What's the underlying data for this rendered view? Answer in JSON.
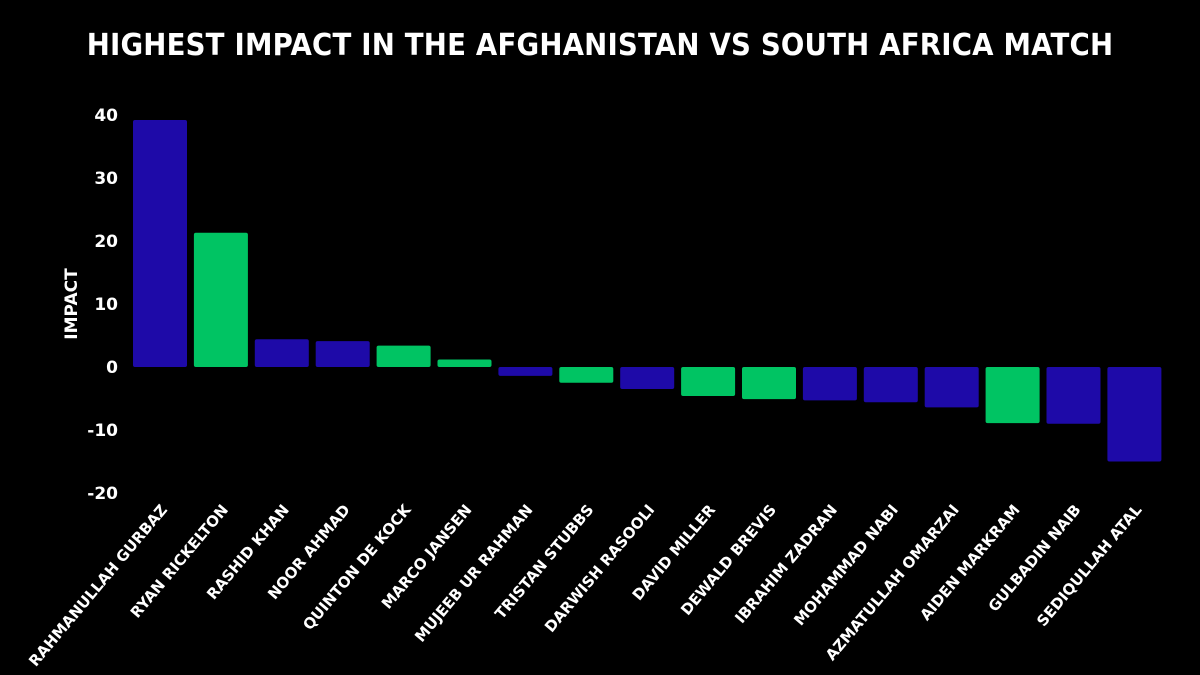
{
  "chart_data": {
    "type": "bar",
    "title": "HIGHEST IMPACT IN THE AFGHANISTAN VS SOUTH AFRICA MATCH",
    "xlabel": "",
    "ylabel": "IMPACT",
    "ylim": [
      -20,
      40
    ],
    "yticks": [
      "40",
      "30",
      "20",
      "10",
      "0",
      "-10",
      "-20"
    ],
    "ytick_values": [
      40,
      30,
      20,
      10,
      0,
      -10,
      -20
    ],
    "colors": {
      "afghanistan": "#1e0aa8",
      "south_africa": "#00c463"
    },
    "categories": [
      "RAHMANULLAH GURBAZ",
      "RYAN RICKELTON",
      "RASHID KHAN",
      "NOOR AHMAD",
      "QUINTON DE KOCK",
      "MARCO JANSEN",
      "MUJEEB UR RAHMAN",
      "TRISTAN STUBBS",
      "DARWISH RASOOLI",
      "DAVID MILLER",
      "DEWALD BREVIS",
      "IBRAHIM ZADRAN",
      "MOHAMMAD NABI",
      "AZMATULLAH OMARZAI",
      "AIDEN MARKRAM",
      "GULBADIN NAIB",
      "SEDIQULLAH ATAL"
    ],
    "values": [
      39.2,
      21.3,
      4.4,
      4.1,
      3.4,
      1.2,
      -1.4,
      -2.5,
      -3.5,
      -4.6,
      -5.1,
      -5.3,
      -5.6,
      -6.4,
      -8.9,
      -9.0,
      -15.0
    ],
    "teams": [
      "afghanistan",
      "south_africa",
      "afghanistan",
      "afghanistan",
      "south_africa",
      "south_africa",
      "afghanistan",
      "south_africa",
      "afghanistan",
      "south_africa",
      "south_africa",
      "afghanistan",
      "afghanistan",
      "afghanistan",
      "south_africa",
      "afghanistan",
      "afghanistan"
    ],
    "grid": false,
    "legend": "none"
  }
}
